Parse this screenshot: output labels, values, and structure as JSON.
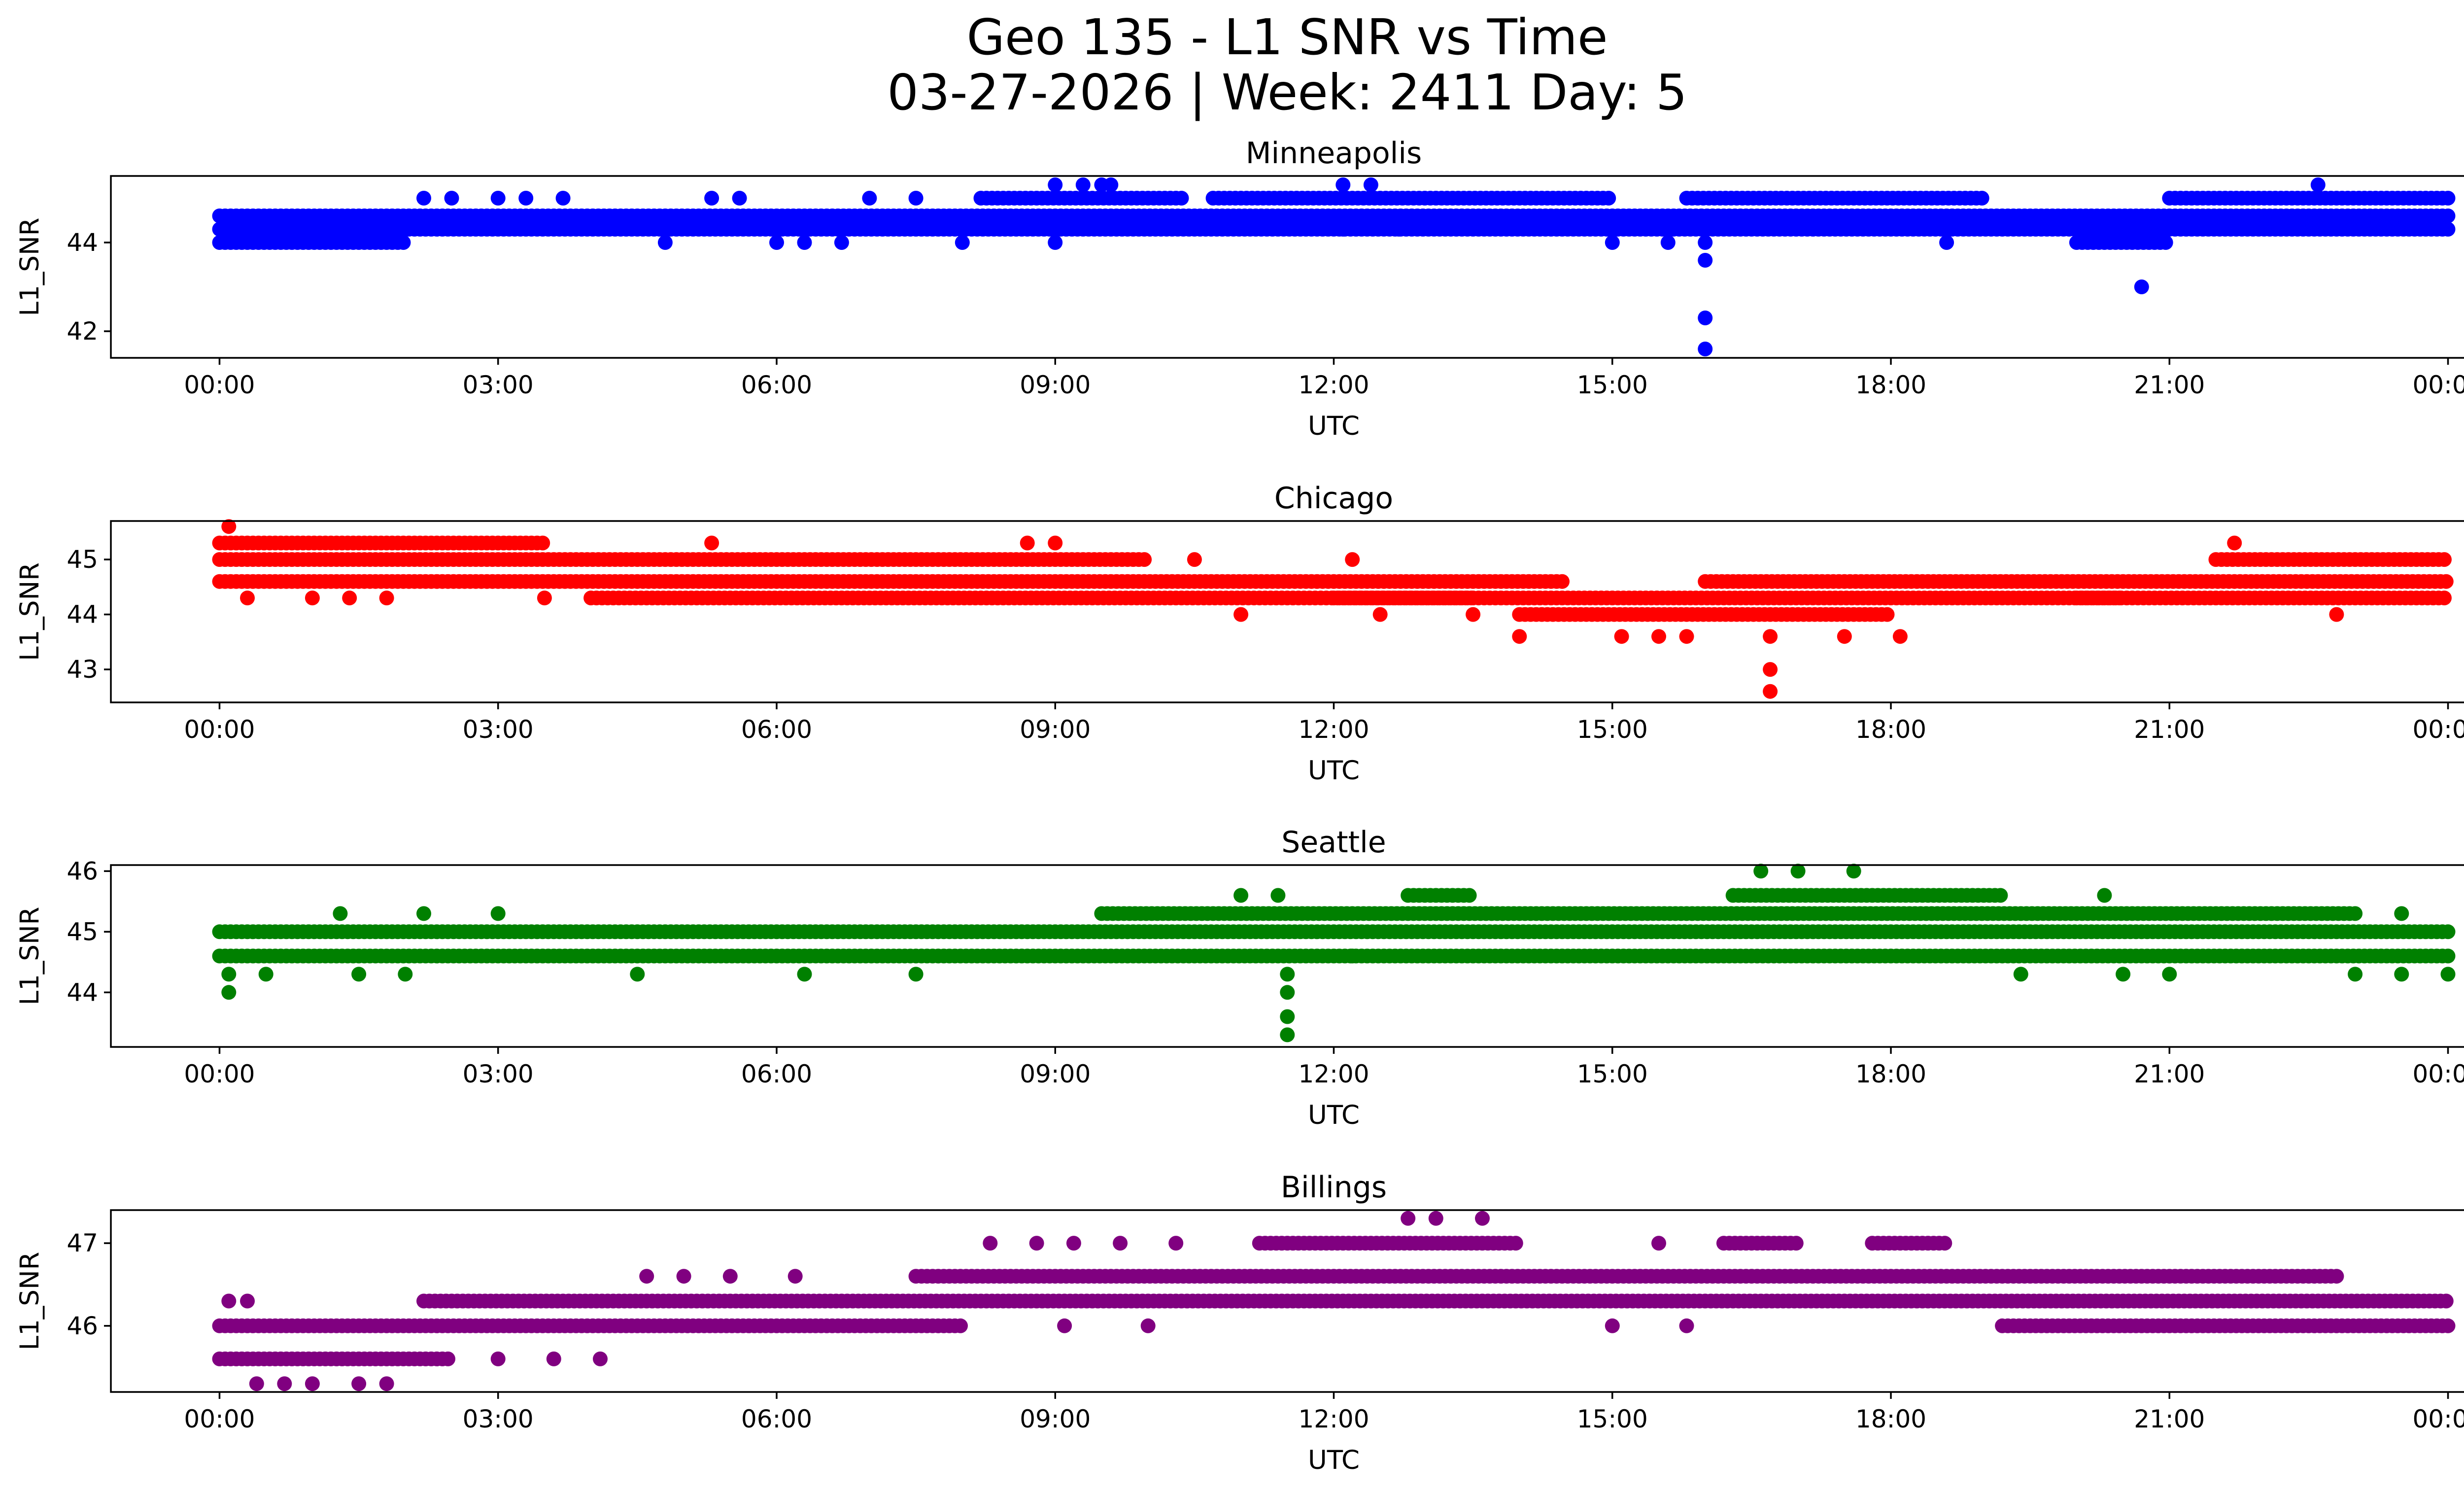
{
  "title": {
    "line1": "Geo 135 - L1 SNR vs Time",
    "line2": "03-27-2026 | Week: 2411 Day: 5"
  },
  "chart_data": [
    {
      "type": "scatter",
      "title": "Minneapolis",
      "xlabel": "UTC",
      "ylabel": "L1_SNR",
      "color": "#0000ff",
      "xlim_hours": [
        -1.17,
        25.17
      ],
      "ylim": [
        41.4,
        45.5
      ],
      "yticks": [
        42,
        44
      ],
      "xtick_labels": [
        "00:00",
        "03:00",
        "06:00",
        "09:00",
        "12:00",
        "15:00",
        "18:00",
        "21:00",
        "00:00"
      ],
      "bands": [
        {
          "start": 0.0,
          "end": 24.0,
          "values": [
            44.3,
            44.6
          ]
        },
        {
          "start": 0.0,
          "end": 2.0,
          "values": [
            44.0
          ]
        },
        {
          "start": 0.0,
          "end": 1.3,
          "values": [
            44.6
          ]
        },
        {
          "start": 1.5,
          "end": 24.0,
          "values": [
            44.6
          ]
        },
        {
          "start": 8.2,
          "end": 10.4,
          "values": [
            45.0
          ]
        },
        {
          "start": 10.7,
          "end": 15.0,
          "values": [
            45.0
          ]
        },
        {
          "start": 15.8,
          "end": 19.0,
          "values": [
            45.0
          ]
        },
        {
          "start": 21.0,
          "end": 24.0,
          "values": [
            45.0
          ]
        },
        {
          "start": 20.0,
          "end": 21.0,
          "values": [
            44.0
          ]
        }
      ],
      "points": [
        {
          "x": 2.2,
          "y": 45.0
        },
        {
          "x": 2.5,
          "y": 45.0
        },
        {
          "x": 3.0,
          "y": 45.0
        },
        {
          "x": 3.3,
          "y": 45.0
        },
        {
          "x": 3.7,
          "y": 45.0
        },
        {
          "x": 5.3,
          "y": 45.0
        },
        {
          "x": 5.6,
          "y": 45.0
        },
        {
          "x": 7.0,
          "y": 45.0
        },
        {
          "x": 7.5,
          "y": 45.0
        },
        {
          "x": 4.8,
          "y": 44.0
        },
        {
          "x": 6.0,
          "y": 44.0
        },
        {
          "x": 6.3,
          "y": 44.0
        },
        {
          "x": 6.7,
          "y": 44.0
        },
        {
          "x": 8.0,
          "y": 44.0
        },
        {
          "x": 9.0,
          "y": 44.0
        },
        {
          "x": 9.0,
          "y": 45.3
        },
        {
          "x": 9.3,
          "y": 45.3
        },
        {
          "x": 9.5,
          "y": 45.3
        },
        {
          "x": 9.6,
          "y": 45.3
        },
        {
          "x": 12.1,
          "y": 45.3
        },
        {
          "x": 12.4,
          "y": 45.3
        },
        {
          "x": 12.1,
          "y": 44.3
        },
        {
          "x": 12.7,
          "y": 44.3
        },
        {
          "x": 15.0,
          "y": 44.0
        },
        {
          "x": 15.6,
          "y": 44.0
        },
        {
          "x": 16.0,
          "y": 44.0
        },
        {
          "x": 16.0,
          "y": 43.6
        },
        {
          "x": 16.0,
          "y": 42.3
        },
        {
          "x": 16.0,
          "y": 41.6
        },
        {
          "x": 18.6,
          "y": 44.0
        },
        {
          "x": 20.7,
          "y": 43.0
        },
        {
          "x": 22.6,
          "y": 45.3
        }
      ]
    },
    {
      "type": "scatter",
      "title": "Chicago",
      "xlabel": "UTC",
      "ylabel": "L1_SNR",
      "color": "#ff0000",
      "xlim_hours": [
        -1.17,
        25.17
      ],
      "ylim": [
        42.4,
        45.7
      ],
      "yticks": [
        43,
        44,
        45
      ],
      "xtick_labels": [
        "00:00",
        "03:00",
        "06:00",
        "09:00",
        "12:00",
        "15:00",
        "18:00",
        "21:00",
        "00:00"
      ],
      "bands": [
        {
          "start": 0.0,
          "end": 10.0,
          "values": [
            45.0
          ]
        },
        {
          "start": 0.0,
          "end": 11.5,
          "values": [
            44.6
          ]
        },
        {
          "start": 4.0,
          "end": 13.5,
          "values": [
            44.3
          ]
        },
        {
          "start": 0.0,
          "end": 3.5,
          "values": [
            45.3
          ]
        },
        {
          "start": 10.2,
          "end": 14.5,
          "values": [
            44.6
          ]
        },
        {
          "start": 12.0,
          "end": 20.5,
          "values": [
            44.3
          ]
        },
        {
          "start": 14.0,
          "end": 18.0,
          "values": [
            44.0
          ]
        },
        {
          "start": 16.0,
          "end": 24.0,
          "values": [
            44.6
          ]
        },
        {
          "start": 20.0,
          "end": 24.0,
          "values": [
            44.3
          ]
        },
        {
          "start": 21.5,
          "end": 24.0,
          "values": [
            45.0
          ]
        }
      ],
      "points": [
        {
          "x": 0.1,
          "y": 45.6
        },
        {
          "x": 0.3,
          "y": 44.3
        },
        {
          "x": 1.0,
          "y": 44.3
        },
        {
          "x": 1.4,
          "y": 44.3
        },
        {
          "x": 1.8,
          "y": 44.3
        },
        {
          "x": 3.5,
          "y": 44.3
        },
        {
          "x": 5.3,
          "y": 45.3
        },
        {
          "x": 8.7,
          "y": 45.3
        },
        {
          "x": 9.0,
          "y": 45.3
        },
        {
          "x": 10.5,
          "y": 45.0
        },
        {
          "x": 12.2,
          "y": 45.0
        },
        {
          "x": 11.0,
          "y": 44.0
        },
        {
          "x": 12.5,
          "y": 44.0
        },
        {
          "x": 13.5,
          "y": 44.0
        },
        {
          "x": 14.0,
          "y": 43.6
        },
        {
          "x": 15.1,
          "y": 43.6
        },
        {
          "x": 15.5,
          "y": 43.6
        },
        {
          "x": 15.8,
          "y": 43.6
        },
        {
          "x": 16.7,
          "y": 43.6
        },
        {
          "x": 17.5,
          "y": 43.6
        },
        {
          "x": 18.1,
          "y": 43.6
        },
        {
          "x": 16.7,
          "y": 43.0
        },
        {
          "x": 16.7,
          "y": 42.6
        },
        {
          "x": 21.7,
          "y": 45.3
        },
        {
          "x": 22.8,
          "y": 44.0
        }
      ]
    },
    {
      "type": "scatter",
      "title": "Seattle",
      "xlabel": "UTC",
      "ylabel": "L1_SNR",
      "color": "#008000",
      "xlim_hours": [
        -1.17,
        25.17
      ],
      "ylim": [
        43.1,
        46.1
      ],
      "yticks": [
        44,
        45,
        46
      ],
      "xtick_labels": [
        "00:00",
        "03:00",
        "06:00",
        "09:00",
        "12:00",
        "15:00",
        "18:00",
        "21:00",
        "00:00"
      ],
      "bands": [
        {
          "start": 0.0,
          "end": 24.0,
          "values": [
            45.0,
            44.6
          ]
        },
        {
          "start": 9.5,
          "end": 23.0,
          "values": [
            45.3
          ]
        },
        {
          "start": 12.8,
          "end": 13.5,
          "values": [
            45.6
          ]
        },
        {
          "start": 16.3,
          "end": 19.2,
          "values": [
            45.6
          ]
        }
      ],
      "points": [
        {
          "x": 0.1,
          "y": 44.3
        },
        {
          "x": 0.1,
          "y": 44.0
        },
        {
          "x": 1.3,
          "y": 45.3
        },
        {
          "x": 2.2,
          "y": 45.3
        },
        {
          "x": 3.0,
          "y": 45.3
        },
        {
          "x": 0.5,
          "y": 44.3
        },
        {
          "x": 1.5,
          "y": 44.3
        },
        {
          "x": 2.0,
          "y": 44.3
        },
        {
          "x": 4.5,
          "y": 44.3
        },
        {
          "x": 6.3,
          "y": 44.3
        },
        {
          "x": 7.5,
          "y": 44.3
        },
        {
          "x": 11.0,
          "y": 45.6
        },
        {
          "x": 11.4,
          "y": 45.6
        },
        {
          "x": 11.5,
          "y": 44.3
        },
        {
          "x": 11.5,
          "y": 44.0
        },
        {
          "x": 11.5,
          "y": 43.6
        },
        {
          "x": 11.5,
          "y": 43.3
        },
        {
          "x": 12.2,
          "y": 44.6
        },
        {
          "x": 16.6,
          "y": 46.0
        },
        {
          "x": 17.0,
          "y": 46.0
        },
        {
          "x": 17.6,
          "y": 46.0
        },
        {
          "x": 19.4,
          "y": 44.3
        },
        {
          "x": 20.5,
          "y": 44.3
        },
        {
          "x": 21.0,
          "y": 44.3
        },
        {
          "x": 20.3,
          "y": 45.6
        },
        {
          "x": 23.0,
          "y": 44.3
        },
        {
          "x": 23.5,
          "y": 44.3
        },
        {
          "x": 23.5,
          "y": 45.3
        },
        {
          "x": 24.0,
          "y": 44.3
        }
      ]
    },
    {
      "type": "scatter",
      "title": "Billings",
      "xlabel": "UTC",
      "ylabel": "L1_SNR",
      "color": "#800080",
      "xlim_hours": [
        -1.17,
        25.17
      ],
      "ylim": [
        45.2,
        47.4
      ],
      "yticks": [
        46,
        47
      ],
      "xtick_labels": [
        "00:00",
        "03:00",
        "06:00",
        "09:00",
        "12:00",
        "15:00",
        "18:00",
        "21:00",
        "00:00"
      ],
      "bands": [
        {
          "start": 0.0,
          "end": 8.0,
          "values": [
            46.0
          ]
        },
        {
          "start": 0.0,
          "end": 2.5,
          "values": [
            45.6
          ]
        },
        {
          "start": 2.2,
          "end": 24.0,
          "values": [
            46.3
          ]
        },
        {
          "start": 7.5,
          "end": 22.8,
          "values": [
            46.6
          ]
        },
        {
          "start": 11.2,
          "end": 14.0,
          "values": [
            47.0
          ]
        },
        {
          "start": 16.2,
          "end": 17.0,
          "values": [
            47.0
          ]
        },
        {
          "start": 17.8,
          "end": 18.6,
          "values": [
            47.0
          ]
        },
        {
          "start": 19.2,
          "end": 24.0,
          "values": [
            46.0
          ]
        }
      ],
      "points": [
        {
          "x": 0.1,
          "y": 46.3
        },
        {
          "x": 0.3,
          "y": 46.3
        },
        {
          "x": 0.4,
          "y": 45.3
        },
        {
          "x": 0.7,
          "y": 45.3
        },
        {
          "x": 1.0,
          "y": 45.3
        },
        {
          "x": 1.5,
          "y": 45.3
        },
        {
          "x": 1.8,
          "y": 45.3
        },
        {
          "x": 3.0,
          "y": 45.6
        },
        {
          "x": 3.6,
          "y": 45.6
        },
        {
          "x": 4.1,
          "y": 45.6
        },
        {
          "x": 4.6,
          "y": 46.6
        },
        {
          "x": 5.0,
          "y": 46.6
        },
        {
          "x": 5.5,
          "y": 46.6
        },
        {
          "x": 6.2,
          "y": 46.6
        },
        {
          "x": 8.3,
          "y": 47.0
        },
        {
          "x": 8.8,
          "y": 47.0
        },
        {
          "x": 9.2,
          "y": 47.0
        },
        {
          "x": 9.7,
          "y": 47.0
        },
        {
          "x": 10.3,
          "y": 47.0
        },
        {
          "x": 9.1,
          "y": 46.0
        },
        {
          "x": 10.0,
          "y": 46.0
        },
        {
          "x": 12.7,
          "y": 46.3
        },
        {
          "x": 12.8,
          "y": 47.3
        },
        {
          "x": 13.1,
          "y": 47.3
        },
        {
          "x": 13.6,
          "y": 47.3
        },
        {
          "x": 15.5,
          "y": 47.0
        },
        {
          "x": 15.0,
          "y": 46.0
        },
        {
          "x": 15.8,
          "y": 46.0
        }
      ]
    }
  ]
}
